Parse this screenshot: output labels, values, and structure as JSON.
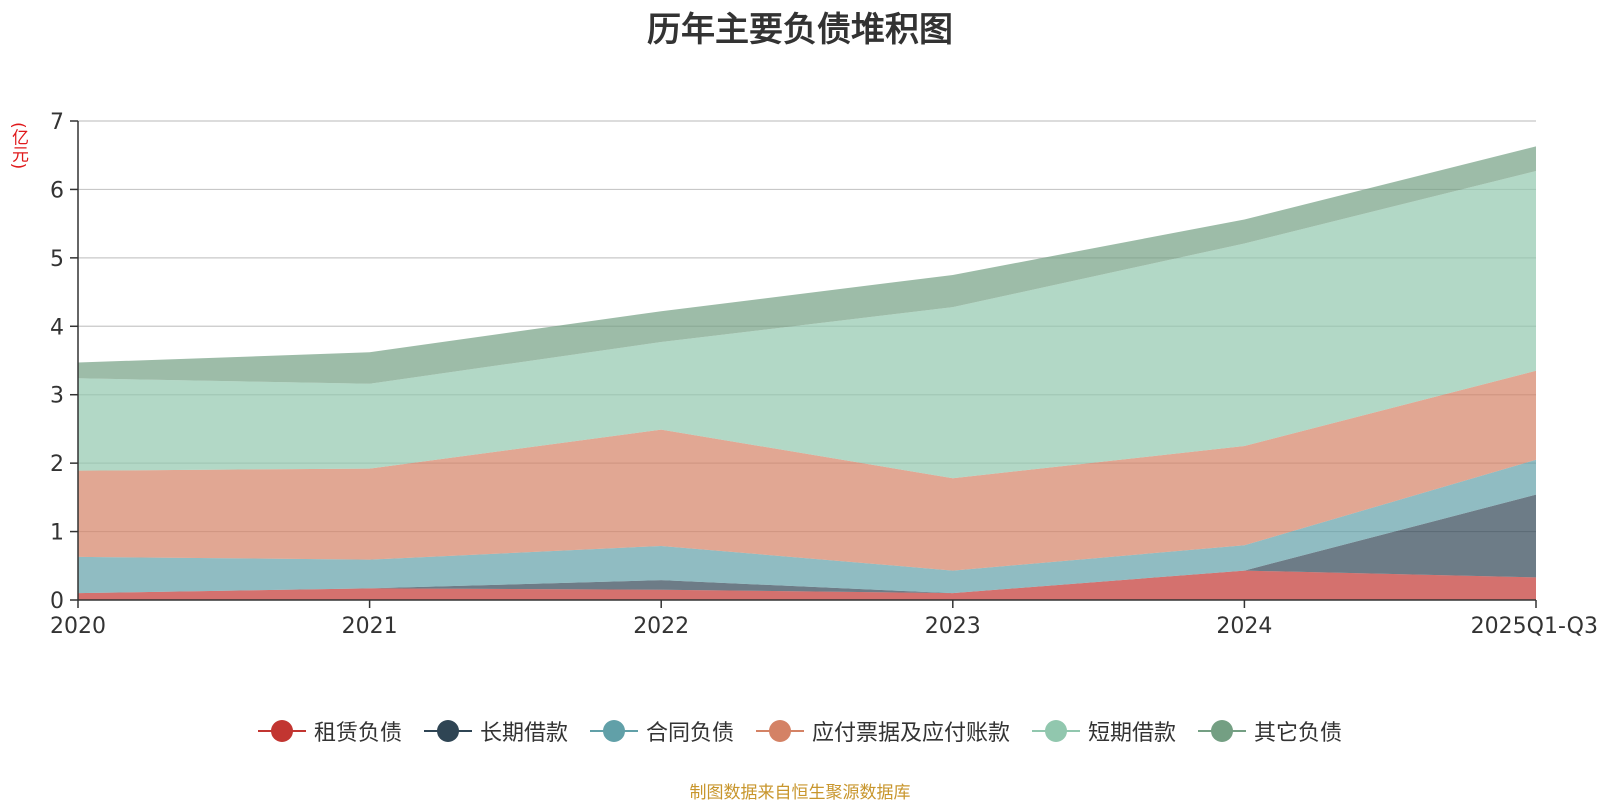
{
  "chart_data": {
    "type": "area",
    "stacked": true,
    "title": "历年主要负债堆积图",
    "unit_label": "(亿元)",
    "categories": [
      "2020",
      "2021",
      "2022",
      "2023",
      "2024",
      "2025Q1-Q3"
    ],
    "ylim": [
      0,
      7
    ],
    "yticks": [
      0,
      1,
      2,
      3,
      4,
      5,
      6,
      7
    ],
    "grid": true,
    "legend_position": "bottom",
    "series": [
      {
        "name": "租赁负债",
        "color": "#c23531",
        "values": [
          0.1,
          0.17,
          0.15,
          0.1,
          0.43,
          0.33
        ]
      },
      {
        "name": "长期借款",
        "color": "#2f4554",
        "values": [
          0.0,
          0.0,
          0.14,
          0.0,
          0.0,
          1.21
        ]
      },
      {
        "name": "合同负债",
        "color": "#61a0a8",
        "values": [
          0.53,
          0.42,
          0.5,
          0.33,
          0.37,
          0.51
        ]
      },
      {
        "name": "应付票据及应付账款",
        "color": "#d48265",
        "values": [
          1.26,
          1.33,
          1.7,
          1.35,
          1.45,
          1.3
        ]
      },
      {
        "name": "短期借款",
        "color": "#91c7ae",
        "values": [
          1.35,
          1.24,
          1.28,
          2.5,
          2.96,
          2.92
        ]
      },
      {
        "name": "其它负债",
        "color": "#749f83",
        "values": [
          0.23,
          0.46,
          0.45,
          0.47,
          0.35,
          0.36
        ]
      }
    ]
  },
  "source_note": "制图数据来自恒生聚源数据库"
}
